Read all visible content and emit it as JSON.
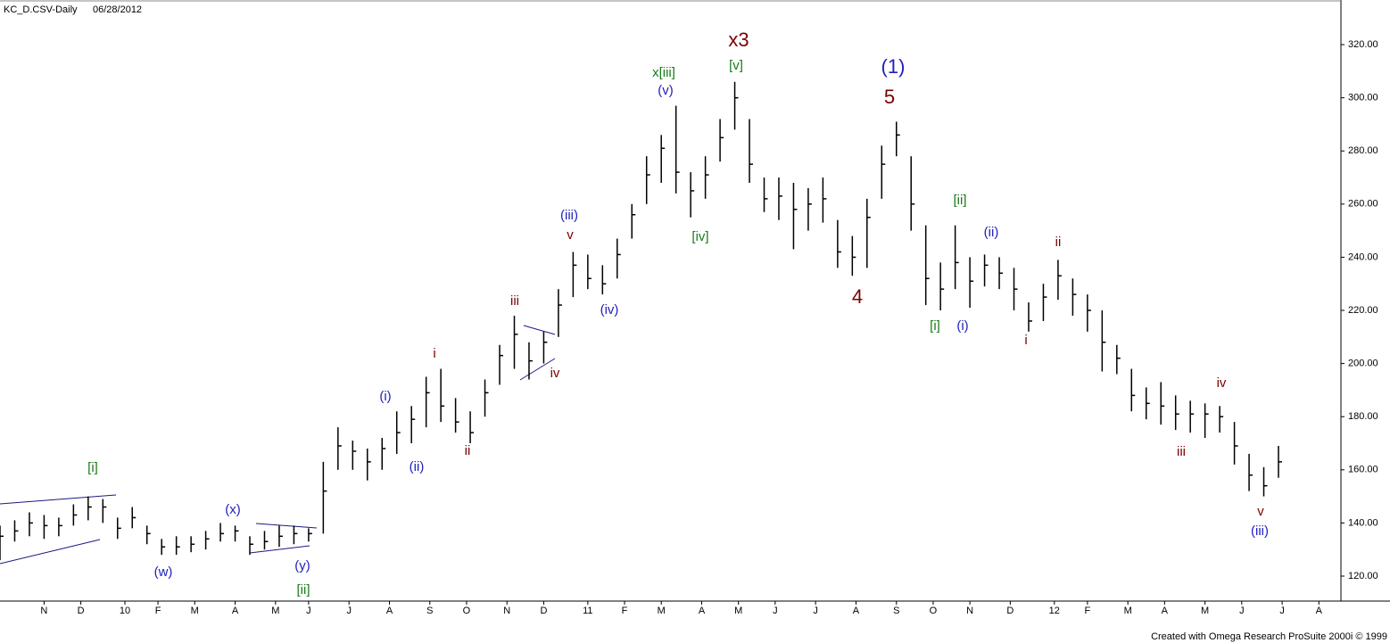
{
  "chart_data": {
    "type": "ohlc",
    "title": "KC_D.CSV-Daily",
    "date": "06/28/2012",
    "footer": "Created with Omega Research ProSuite 2000i © 1999",
    "color": "#000000",
    "xlim": [
      0,
      365
    ],
    "ylim": [
      110.6,
      336.8
    ],
    "yticks": [
      {
        "value": 120,
        "label": "120.00"
      },
      {
        "value": 140,
        "label": "140.00"
      },
      {
        "value": 160,
        "label": "160.00"
      },
      {
        "value": 180,
        "label": "180.00"
      },
      {
        "value": 200,
        "label": "200.00"
      },
      {
        "value": 220,
        "label": "220.00"
      },
      {
        "value": 240,
        "label": "240.00"
      },
      {
        "value": 260,
        "label": "260.00"
      },
      {
        "value": 280,
        "label": "280.00"
      },
      {
        "value": 300,
        "label": "300.00"
      },
      {
        "value": 320,
        "label": "320.00"
      }
    ],
    "xticks": [
      {
        "value": 12,
        "label": "N"
      },
      {
        "value": 22,
        "label": "D"
      },
      {
        "value": 34,
        "label": "10"
      },
      {
        "value": 43,
        "label": "F"
      },
      {
        "value": 53,
        "label": "M"
      },
      {
        "value": 64,
        "label": "A"
      },
      {
        "value": 75,
        "label": "M"
      },
      {
        "value": 84,
        "label": "J"
      },
      {
        "value": 95,
        "label": "J"
      },
      {
        "value": 106,
        "label": "A"
      },
      {
        "value": 117,
        "label": "S"
      },
      {
        "value": 127,
        "label": "O"
      },
      {
        "value": 138,
        "label": "N"
      },
      {
        "value": 148,
        "label": "D"
      },
      {
        "value": 160,
        "label": "11"
      },
      {
        "value": 170,
        "label": "F"
      },
      {
        "value": 180,
        "label": "M"
      },
      {
        "value": 191,
        "label": "A"
      },
      {
        "value": 201,
        "label": "M"
      },
      {
        "value": 211,
        "label": "J"
      },
      {
        "value": 222,
        "label": "J"
      },
      {
        "value": 233,
        "label": "A"
      },
      {
        "value": 244,
        "label": "S"
      },
      {
        "value": 254,
        "label": "O"
      },
      {
        "value": 264,
        "label": "N"
      },
      {
        "value": 275,
        "label": "D"
      },
      {
        "value": 287,
        "label": "12"
      },
      {
        "value": 296,
        "label": "F"
      },
      {
        "value": 307,
        "label": "M"
      },
      {
        "value": 317,
        "label": "A"
      },
      {
        "value": 328,
        "label": "M"
      },
      {
        "value": 338,
        "label": "J"
      },
      {
        "value": 349,
        "label": "J"
      },
      {
        "value": 359,
        "label": "A"
      }
    ],
    "x": [
      0,
      4,
      8,
      12,
      16,
      20,
      24,
      28,
      32,
      36,
      40,
      44,
      48,
      52,
      56,
      60,
      64,
      68,
      72,
      76,
      80,
      84,
      88,
      92,
      96,
      100,
      104,
      108,
      112,
      116,
      120,
      124,
      128,
      132,
      136,
      140,
      144,
      148,
      152,
      156,
      160,
      164,
      168,
      172,
      176,
      180,
      184,
      188,
      192,
      196,
      200,
      204,
      208,
      212,
      216,
      220,
      224,
      228,
      232,
      236,
      240,
      244,
      248,
      252,
      256,
      260,
      264,
      268,
      272,
      276,
      280,
      284,
      288,
      292,
      296,
      300,
      304,
      308,
      312,
      316,
      320,
      324,
      328,
      332,
      336,
      340,
      344,
      348
    ],
    "high": [
      139,
      141,
      144,
      143,
      142,
      147,
      150,
      149,
      142,
      146,
      139,
      134,
      135,
      135,
      137,
      140,
      139,
      135,
      137,
      139,
      139,
      138,
      163,
      176,
      171,
      168,
      172,
      182,
      184,
      195,
      198,
      187,
      182,
      194,
      207,
      218,
      208,
      212,
      228,
      242,
      241,
      237,
      247,
      260,
      278,
      286,
      297,
      272,
      278,
      292,
      306,
      292,
      270,
      270,
      268,
      266,
      270,
      254,
      248,
      262,
      282,
      291,
      278,
      252,
      238,
      252,
      240,
      241,
      240,
      236,
      223,
      230,
      239,
      232,
      226,
      220,
      207,
      198,
      191,
      193,
      188,
      186,
      185,
      184,
      178,
      166,
      161,
      169
    ],
    "low": [
      126,
      133,
      135,
      134,
      135,
      139,
      141,
      140,
      134,
      138,
      132,
      128,
      128,
      129,
      130,
      133,
      133,
      128,
      130,
      131,
      132,
      133,
      136,
      160,
      160,
      156,
      160,
      166,
      170,
      176,
      178,
      174,
      170,
      180,
      192,
      198,
      194,
      200,
      210,
      225,
      228,
      226,
      232,
      247,
      260,
      268,
      264,
      255,
      262,
      276,
      288,
      268,
      257,
      254,
      243,
      250,
      253,
      236,
      233,
      236,
      262,
      278,
      250,
      222,
      220,
      228,
      221,
      229,
      228,
      220,
      212,
      216,
      224,
      218,
      212,
      197,
      196,
      182,
      179,
      177,
      175,
      174,
      172,
      174,
      162,
      152,
      150,
      157
    ],
    "close": [
      135,
      137,
      140,
      139,
      139,
      143,
      146,
      146,
      138,
      142,
      136,
      131,
      131,
      132,
      134,
      136,
      137,
      132,
      133,
      135,
      136,
      136,
      152,
      169,
      167,
      163,
      168,
      174,
      179,
      189,
      184,
      178,
      174,
      189,
      203,
      211,
      201,
      208,
      222,
      237,
      232,
      230,
      241,
      256,
      271,
      281,
      272,
      265,
      271,
      285,
      300,
      275,
      262,
      263,
      258,
      260,
      262,
      242,
      240,
      255,
      275,
      286,
      260,
      232,
      228,
      238,
      231,
      237,
      234,
      228,
      216,
      225,
      233,
      226,
      220,
      208,
      202,
      188,
      185,
      184,
      181,
      181,
      181,
      180,
      169,
      158,
      154,
      163
    ],
    "annotations": [
      {
        "text": "[i]",
        "color": "#1a7a1a"
      },
      {
        "text": "(w)",
        "color": "#2020c0"
      },
      {
        "text": "(x)",
        "color": "#2020c0"
      },
      {
        "text": "(y)",
        "color": "#2020c0"
      },
      {
        "text": "[ii]",
        "color": "#1a7a1a"
      },
      {
        "text": "(i)",
        "color": "#2020c0"
      },
      {
        "text": "(ii)",
        "color": "#2020c0"
      },
      {
        "text": "i",
        "color": "#7a0000"
      },
      {
        "text": "ii",
        "color": "#7a0000"
      },
      {
        "text": "iii",
        "color": "#7a0000"
      },
      {
        "text": "iv",
        "color": "#7a0000"
      },
      {
        "text": "(iii)",
        "color": "#2020c0"
      },
      {
        "text": "v",
        "color": "#7a0000"
      },
      {
        "text": "(iv)",
        "color": "#2020c0"
      },
      {
        "text": "x[iii]",
        "color": "#1a7a1a"
      },
      {
        "text": "(v)",
        "color": "#2020c0"
      },
      {
        "text": "[iv]",
        "color": "#1a7a1a"
      },
      {
        "text": "[v]",
        "color": "#1a7a1a"
      },
      {
        "text": "x3",
        "color": "#7a0000"
      },
      {
        "text": "(1)",
        "color": "#2020c0"
      },
      {
        "text": "5",
        "color": "#7a0000"
      },
      {
        "text": "4",
        "color": "#7a0000"
      },
      {
        "text": "[ii]",
        "color": "#1a7a1a"
      },
      {
        "text": "(ii)",
        "color": "#2020c0"
      },
      {
        "text": "[i]",
        "color": "#1a7a1a"
      },
      {
        "text": "(i)",
        "color": "#2020c0"
      },
      {
        "text": "ii",
        "color": "#7a0000"
      },
      {
        "text": "i",
        "color": "#7a0000"
      },
      {
        "text": "iv",
        "color": "#7a0000"
      },
      {
        "text": "iii",
        "color": "#7a0000"
      },
      {
        "text": "v",
        "color": "#7a0000"
      },
      {
        "text": "(iii)",
        "color": "#2020c0"
      }
    ]
  }
}
